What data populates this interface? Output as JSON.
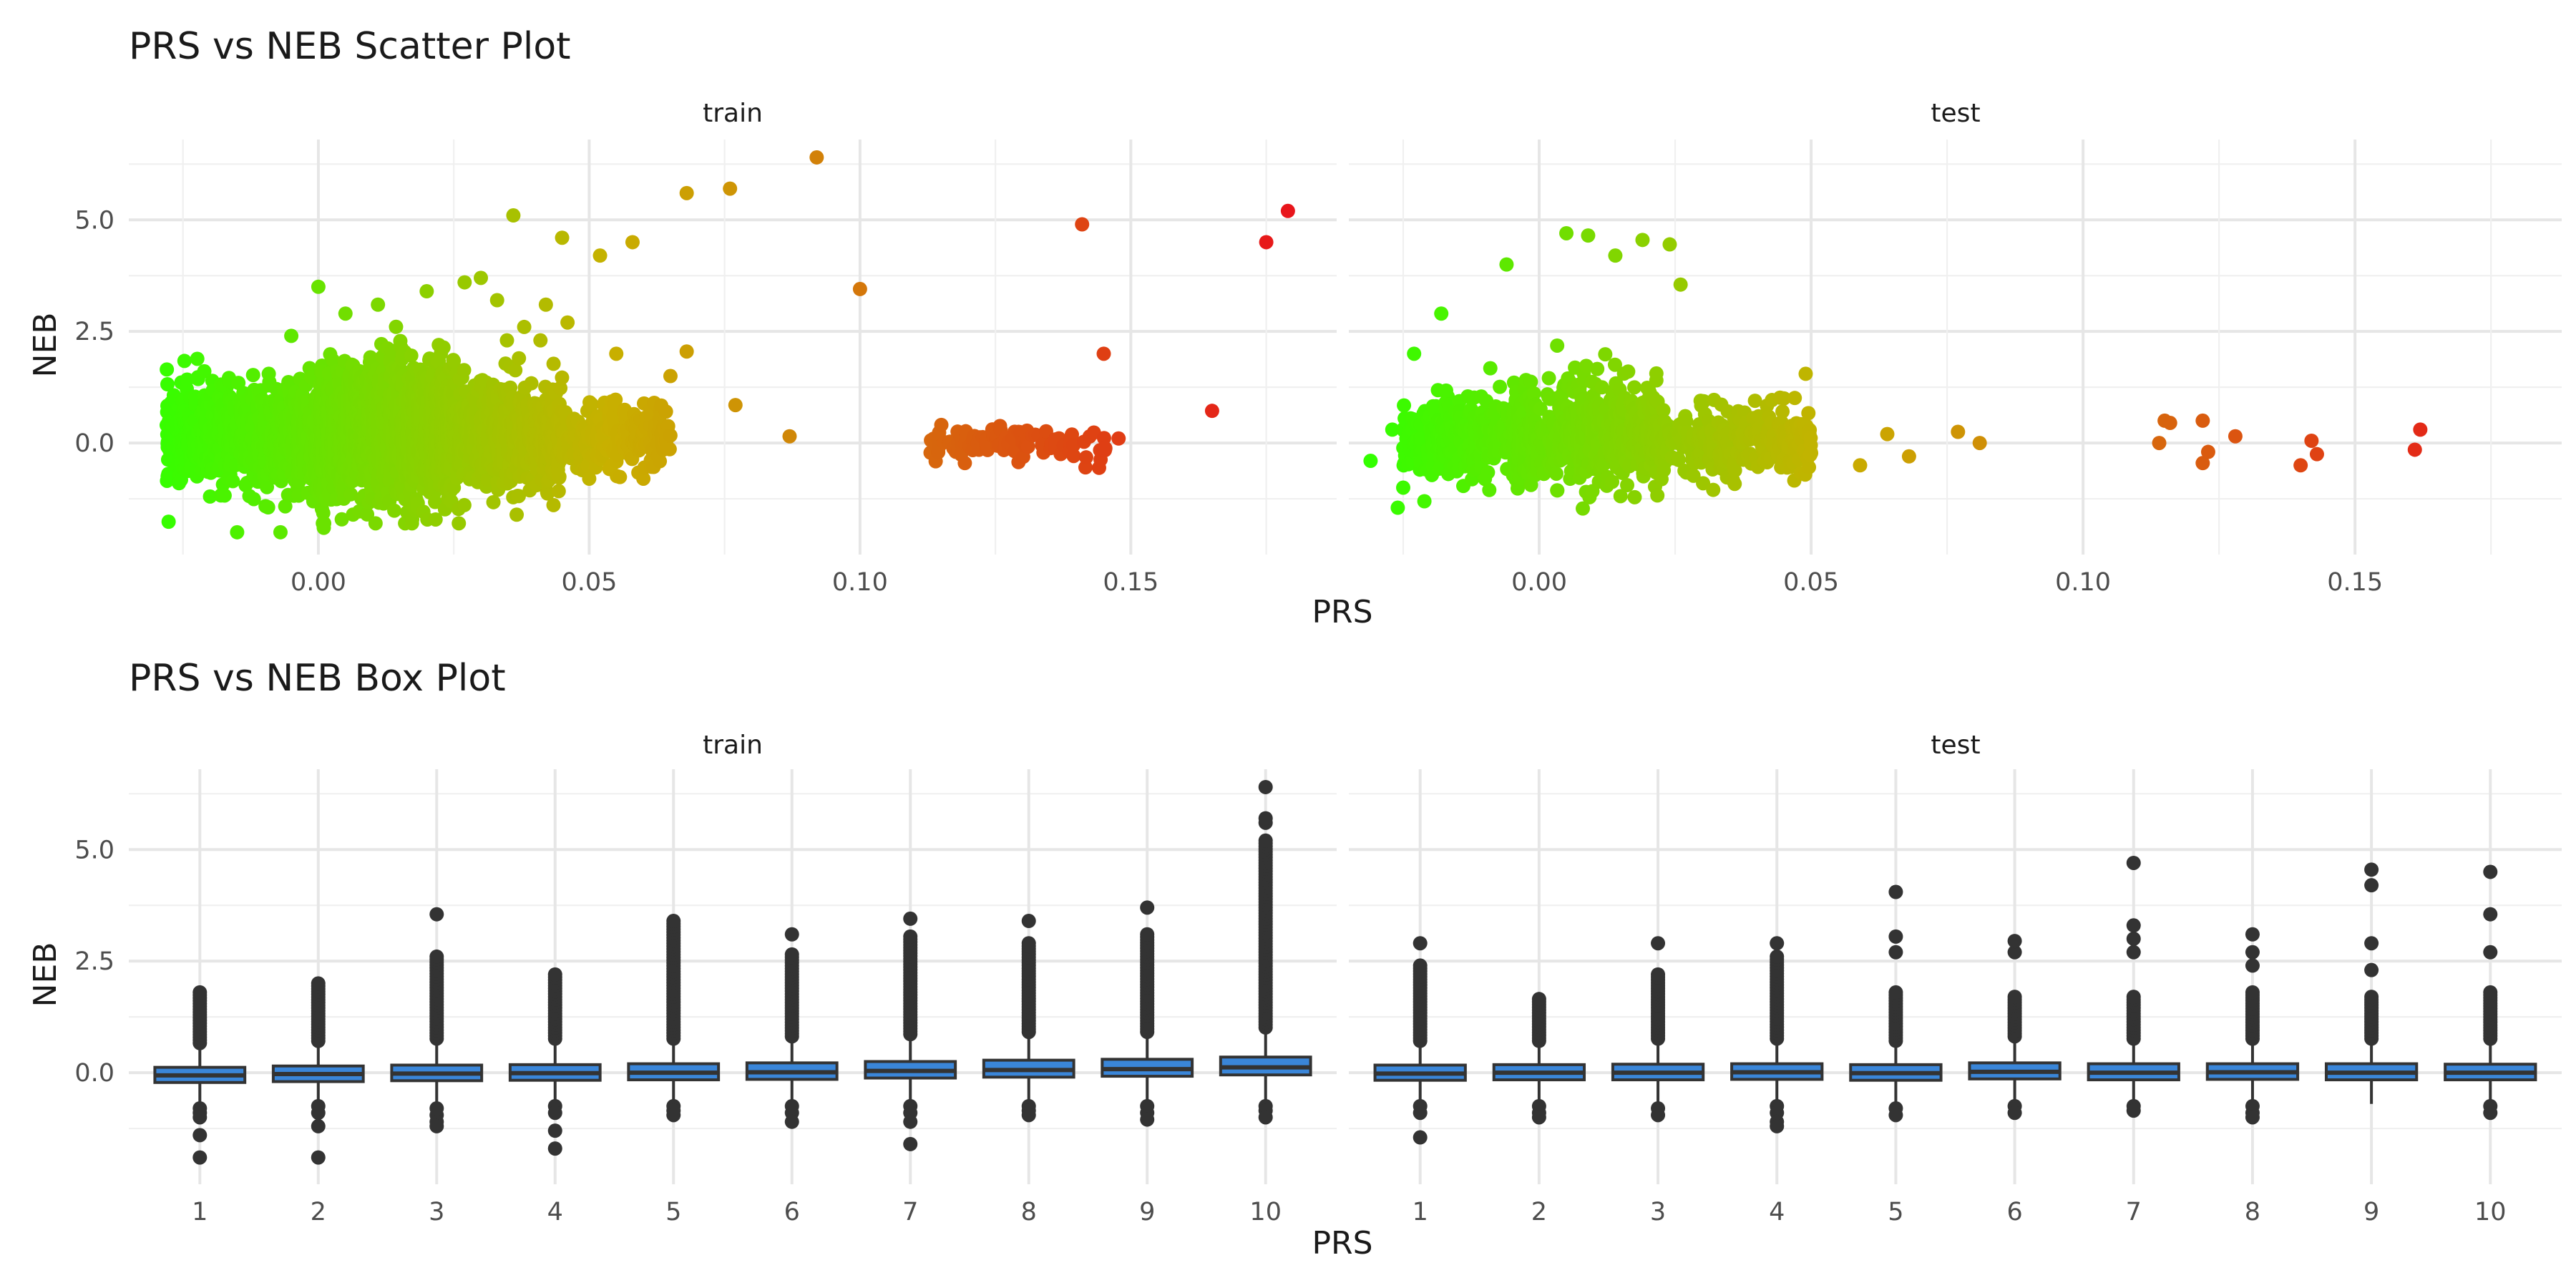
{
  "chart_data": [
    {
      "type": "scatter",
      "title": "PRS vs NEB Scatter Plot",
      "xlabel": "PRS",
      "ylabel": "NEB",
      "xlim": [
        -0.035,
        0.188
      ],
      "ylim": [
        -2.5,
        6.8
      ],
      "x_ticks": [
        0.0,
        0.05,
        0.1,
        0.15
      ],
      "x_tick_labels": [
        "0.00",
        "0.05",
        "0.10",
        "0.15"
      ],
      "y_ticks": [
        0.0,
        2.5,
        5.0
      ],
      "y_tick_labels": [
        "0.0",
        "2.5",
        "5.0"
      ],
      "grid": true,
      "color_scale": {
        "low": "#33ff00",
        "mid": "#c8b000",
        "high": "#e8141b",
        "range": [
          -0.03,
          0.18
        ]
      },
      "facets": [
        {
          "label": "train",
          "points": [
            [
              0.092,
              6.4
            ],
            [
              0.076,
              5.7
            ],
            [
              0.068,
              5.6
            ],
            [
              0.036,
              5.1
            ],
            [
              0.045,
              4.6
            ],
            [
              0.052,
              4.2
            ],
            [
              0.058,
              4.5
            ],
            [
              0.179,
              5.2
            ],
            [
              0.175,
              4.5
            ],
            [
              0.141,
              4.9
            ],
            [
              0.1,
              3.45
            ],
            [
              0.145,
              2.0
            ],
            [
              0.165,
              0.72
            ],
            [
              0.087,
              0.15
            ],
            [
              0.077,
              0.85
            ],
            [
              0.068,
              2.05
            ],
            [
              0.065,
              1.5
            ],
            [
              0.062,
              0.9
            ],
            [
              0.064,
              0.3
            ],
            [
              0.06,
              -0.8
            ],
            [
              0.042,
              3.1
            ],
            [
              0.046,
              2.7
            ],
            [
              0.038,
              2.6
            ],
            [
              0.03,
              3.7
            ],
            [
              0.027,
              3.6
            ],
            [
              0.033,
              3.2
            ],
            [
              0.041,
              2.3
            ],
            [
              0.0,
              3.5
            ],
            [
              0.011,
              3.1
            ],
            [
              0.02,
              3.4
            ],
            [
              0.005,
              2.9
            ],
            [
              -0.005,
              2.4
            ],
            [
              0.055,
              2.0
            ],
            [
              -0.015,
              -2.0
            ],
            [
              -0.007,
              -2.0
            ],
            [
              0.001,
              -1.9
            ],
            [
              -0.02,
              -1.2
            ],
            [
              0.009,
              -1.6
            ],
            [
              0.025,
              -1.0
            ],
            [
              -0.028,
              0.4
            ],
            [
              -0.026,
              -0.5
            ],
            [
              0.05,
              -0.8
            ]
          ],
          "clusters": [
            {
              "x_range": [
                -0.028,
                0.003
              ],
              "y_mean": 0.15,
              "y_sd": 0.55,
              "count": 900
            },
            {
              "x_range": [
                0.0,
                0.025
              ],
              "y_mean": 0.25,
              "y_sd": 0.75,
              "count": 1400
            },
            {
              "x_range": [
                0.02,
                0.045
              ],
              "y_mean": 0.2,
              "y_sd": 0.6,
              "count": 700
            },
            {
              "x_range": [
                0.04,
                0.065
              ],
              "y_mean": 0.1,
              "y_sd": 0.35,
              "count": 300
            },
            {
              "x_range": [
                0.113,
                0.148
              ],
              "y_mean": 0.0,
              "y_sd": 0.18,
              "count": 110
            }
          ]
        },
        {
          "label": "test",
          "points": [
            [
              0.005,
              4.7
            ],
            [
              0.009,
              4.65
            ],
            [
              0.019,
              4.55
            ],
            [
              0.024,
              4.45
            ],
            [
              0.014,
              4.2
            ],
            [
              -0.006,
              4.0
            ],
            [
              0.026,
              3.55
            ],
            [
              -0.018,
              2.9
            ],
            [
              -0.023,
              2.0
            ],
            [
              -0.027,
              0.3
            ],
            [
              -0.031,
              -0.4
            ],
            [
              -0.026,
              -1.45
            ],
            [
              -0.025,
              -1.0
            ],
            [
              0.032,
              -1.05
            ],
            [
              0.049,
              1.55
            ],
            [
              0.045,
              1.0
            ],
            [
              0.059,
              -0.5
            ],
            [
              0.064,
              0.2
            ],
            [
              0.068,
              -0.3
            ],
            [
              0.077,
              0.25
            ],
            [
              0.081,
              0.0
            ],
            [
              0.115,
              0.5
            ],
            [
              0.116,
              0.45
            ],
            [
              0.114,
              0.0
            ],
            [
              0.122,
              0.5
            ],
            [
              0.123,
              -0.2
            ],
            [
              0.122,
              -0.45
            ],
            [
              0.128,
              0.15
            ],
            [
              0.14,
              -0.5
            ],
            [
              0.142,
              0.05
            ],
            [
              0.143,
              -0.25
            ],
            [
              0.162,
              0.3
            ],
            [
              0.161,
              -0.15
            ]
          ],
          "clusters": [
            {
              "x_range": [
                -0.025,
                0.0
              ],
              "y_mean": 0.1,
              "y_sd": 0.45,
              "count": 350
            },
            {
              "x_range": [
                -0.005,
                0.022
              ],
              "y_mean": 0.2,
              "y_sd": 0.6,
              "count": 550
            },
            {
              "x_range": [
                0.02,
                0.05
              ],
              "y_mean": 0.05,
              "y_sd": 0.35,
              "count": 300
            }
          ]
        }
      ]
    },
    {
      "type": "box",
      "title": "PRS vs NEB Box Plot",
      "xlabel": "PRS",
      "ylabel": "NEB",
      "categories": [
        "1",
        "2",
        "3",
        "4",
        "5",
        "6",
        "7",
        "8",
        "9",
        "10"
      ],
      "ylim": [
        -2.5,
        6.8
      ],
      "y_ticks": [
        0.0,
        2.5,
        5.0
      ],
      "y_tick_labels": [
        "0.0",
        "2.5",
        "5.0"
      ],
      "grid": true,
      "box_fill": "#3a86d9",
      "facets": [
        {
          "label": "train",
          "boxes": [
            {
              "q1": -0.22,
              "median": -0.06,
              "q3": 0.12,
              "low": -0.7,
              "high": 0.6,
              "out_low": [
                -0.8,
                -0.9,
                -1.0,
                -1.4,
                -1.9
              ],
              "out_high_from": 0.6,
              "out_high_to": 1.8
            },
            {
              "q1": -0.2,
              "median": -0.03,
              "q3": 0.15,
              "low": -0.65,
              "high": 0.65,
              "out_low": [
                -0.75,
                -0.9,
                -1.2,
                -1.9
              ],
              "out_high_from": 0.65,
              "out_high_to": 2.0
            },
            {
              "q1": -0.18,
              "median": -0.02,
              "q3": 0.17,
              "low": -0.65,
              "high": 0.7,
              "out_low": [
                -0.8,
                -0.95,
                -1.1,
                -1.2
              ],
              "out_high_from": 0.7,
              "out_high_to": 2.6,
              "extra_high": [
                3.55
              ]
            },
            {
              "q1": -0.17,
              "median": -0.01,
              "q3": 0.18,
              "low": -0.65,
              "high": 0.7,
              "out_low": [
                -0.75,
                -0.9,
                -1.3,
                -1.7
              ],
              "out_high_from": 0.7,
              "out_high_to": 2.2
            },
            {
              "q1": -0.16,
              "median": 0.0,
              "q3": 0.2,
              "low": -0.65,
              "high": 0.7,
              "out_low": [
                -0.75,
                -0.85,
                -0.95
              ],
              "out_high_from": 0.7,
              "out_high_to": 3.4
            },
            {
              "q1": -0.15,
              "median": 0.01,
              "q3": 0.22,
              "low": -0.65,
              "high": 0.75,
              "out_low": [
                -0.75,
                -0.9,
                -1.1
              ],
              "out_high_from": 0.75,
              "out_high_to": 2.65,
              "extra_high": [
                3.1
              ]
            },
            {
              "q1": -0.12,
              "median": 0.04,
              "q3": 0.25,
              "low": -0.65,
              "high": 0.8,
              "out_low": [
                -0.75,
                -0.9,
                -1.1,
                -1.6
              ],
              "out_high_from": 0.8,
              "out_high_to": 3.05,
              "extra_high": [
                3.45
              ]
            },
            {
              "q1": -0.1,
              "median": 0.06,
              "q3": 0.28,
              "low": -0.65,
              "high": 0.85,
              "out_low": [
                -0.75,
                -0.85,
                -0.95
              ],
              "out_high_from": 0.85,
              "out_high_to": 2.9,
              "extra_high": [
                3.4
              ]
            },
            {
              "q1": -0.08,
              "median": 0.08,
              "q3": 0.3,
              "low": -0.65,
              "high": 0.85,
              "out_low": [
                -0.75,
                -0.9,
                -1.05
              ],
              "out_high_from": 0.85,
              "out_high_to": 3.1,
              "extra_high": [
                3.7
              ]
            },
            {
              "q1": -0.05,
              "median": 0.12,
              "q3": 0.35,
              "low": -0.65,
              "high": 0.95,
              "out_low": [
                -0.75,
                -0.85,
                -1.0
              ],
              "out_high_from": 0.95,
              "out_high_to": 5.2,
              "extra_high": [
                5.6,
                5.7,
                6.4
              ]
            }
          ]
        },
        {
          "label": "test",
          "boxes": [
            {
              "q1": -0.17,
              "median": -0.02,
              "q3": 0.17,
              "low": -0.65,
              "high": 0.65,
              "out_low": [
                -0.75,
                -0.9,
                -1.45
              ],
              "out_high_from": 0.65,
              "out_high_to": 2.4,
              "extra_high": [
                2.9
              ]
            },
            {
              "q1": -0.16,
              "median": 0.0,
              "q3": 0.18,
              "low": -0.65,
              "high": 0.65,
              "out_low": [
                -0.75,
                -0.9,
                -1.0
              ],
              "out_high_from": 0.65,
              "out_high_to": 1.65
            },
            {
              "q1": -0.16,
              "median": 0.0,
              "q3": 0.19,
              "low": -0.65,
              "high": 0.7,
              "out_low": [
                -0.8,
                -0.95
              ],
              "out_high_from": 0.7,
              "out_high_to": 2.2,
              "extra_high": [
                2.9
              ]
            },
            {
              "q1": -0.15,
              "median": 0.01,
              "q3": 0.2,
              "low": -0.65,
              "high": 0.7,
              "out_low": [
                -0.75,
                -0.9,
                -1.1,
                -1.2
              ],
              "out_high_from": 0.7,
              "out_high_to": 2.6,
              "extra_high": [
                2.9
              ]
            },
            {
              "q1": -0.17,
              "median": -0.01,
              "q3": 0.18,
              "low": -0.65,
              "high": 0.65,
              "out_low": [
                -0.8,
                -0.95
              ],
              "out_high_from": 0.65,
              "out_high_to": 1.8,
              "extra_high": [
                2.7,
                3.05,
                4.05
              ]
            },
            {
              "q1": -0.14,
              "median": 0.02,
              "q3": 0.22,
              "low": -0.65,
              "high": 0.75,
              "out_low": [
                -0.75,
                -0.9
              ],
              "out_high_from": 0.75,
              "out_high_to": 1.7,
              "extra_high": [
                2.7,
                2.95
              ]
            },
            {
              "q1": -0.16,
              "median": 0.0,
              "q3": 0.2,
              "low": -0.65,
              "high": 0.7,
              "out_low": [
                -0.75,
                -0.85
              ],
              "out_high_from": 0.7,
              "out_high_to": 1.7,
              "extra_high": [
                2.7,
                3.0,
                3.3,
                4.7
              ]
            },
            {
              "q1": -0.15,
              "median": 0.01,
              "q3": 0.2,
              "low": -0.65,
              "high": 0.7,
              "out_low": [
                -0.75,
                -0.9,
                -1.0
              ],
              "out_high_from": 0.7,
              "out_high_to": 1.8,
              "extra_high": [
                2.4,
                2.7,
                3.1
              ]
            },
            {
              "q1": -0.16,
              "median": 0.0,
              "q3": 0.2,
              "low": -0.7,
              "high": 0.7,
              "out_low": [],
              "out_high_from": 0.7,
              "out_high_to": 1.7,
              "extra_high": [
                2.3,
                2.9,
                4.2,
                4.55
              ]
            },
            {
              "q1": -0.16,
              "median": 0.0,
              "q3": 0.19,
              "low": -0.65,
              "high": 0.7,
              "out_low": [
                -0.75,
                -0.9
              ],
              "out_high_from": 0.7,
              "out_high_to": 1.8,
              "extra_high": [
                2.7,
                3.55,
                4.5
              ]
            }
          ]
        }
      ]
    }
  ]
}
